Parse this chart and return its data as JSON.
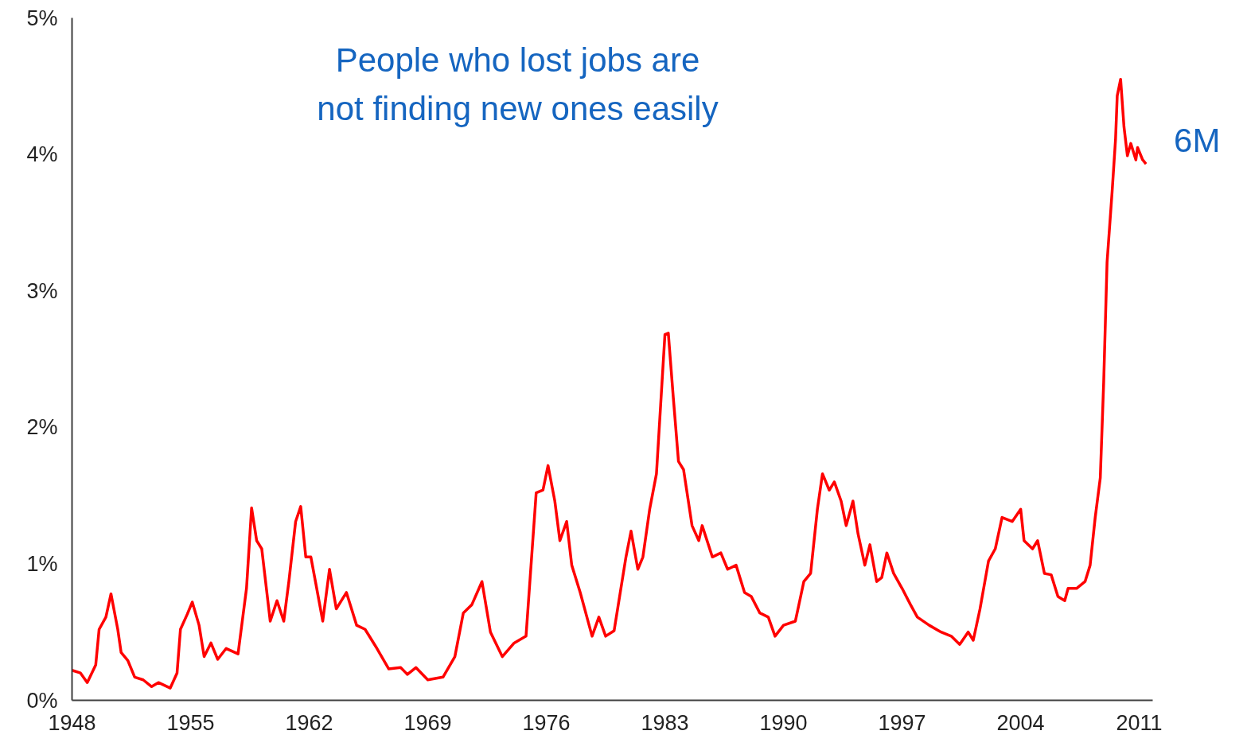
{
  "chart_data": {
    "type": "line",
    "xlim": [
      1948,
      2011.8
    ],
    "ylim": [
      0,
      5
    ],
    "xticks": [
      1948,
      1955,
      1962,
      1969,
      1976,
      1983,
      1990,
      1997,
      2004,
      2011
    ],
    "yticks": [
      {
        "value": 0,
        "label": "0%"
      },
      {
        "value": 1,
        "label": "1%"
      },
      {
        "value": 2,
        "label": "2%"
      },
      {
        "value": 3,
        "label": "3%"
      },
      {
        "value": 4,
        "label": "4%"
      },
      {
        "value": 5,
        "label": "5%"
      }
    ],
    "grid": false,
    "marker": "none",
    "line_style": "solid",
    "annotations": [
      "People who lost jobs are\nnot finding new ones easily",
      {
        "text": "6M",
        "x": 2011.4,
        "y": 3.93
      }
    ],
    "x": [
      1948.0,
      1948.5,
      1948.9,
      1949.4,
      1949.6,
      1950.0,
      1950.3,
      1950.7,
      1950.9,
      1951.3,
      1951.7,
      1952.2,
      1952.7,
      1953.1,
      1953.8,
      1954.2,
      1954.4,
      1954.8,
      1955.1,
      1955.5,
      1955.8,
      1956.2,
      1956.6,
      1957.1,
      1957.8,
      1958.3,
      1958.6,
      1958.9,
      1959.2,
      1959.7,
      1960.1,
      1960.5,
      1960.8,
      1961.2,
      1961.5,
      1961.8,
      1962.1,
      1962.4,
      1962.8,
      1963.2,
      1963.6,
      1964.2,
      1964.8,
      1965.3,
      1966.0,
      1966.7,
      1967.4,
      1967.8,
      1968.3,
      1969.0,
      1969.9,
      1970.6,
      1971.1,
      1971.6,
      1972.2,
      1972.7,
      1973.4,
      1974.1,
      1974.8,
      1975.4,
      1975.8,
      1976.1,
      1976.5,
      1976.8,
      1977.2,
      1977.5,
      1978.0,
      1978.7,
      1979.1,
      1979.5,
      1980.0,
      1980.7,
      1981.0,
      1981.4,
      1981.7,
      1982.1,
      1982.5,
      1983.0,
      1983.2,
      1983.5,
      1983.8,
      1984.1,
      1984.6,
      1985.0,
      1985.2,
      1985.8,
      1986.3,
      1986.7,
      1987.2,
      1987.7,
      1988.1,
      1988.6,
      1989.1,
      1989.5,
      1990.0,
      1990.7,
      1991.2,
      1991.6,
      1992.0,
      1992.3,
      1992.7,
      1993.0,
      1993.4,
      1993.7,
      1994.1,
      1994.4,
      1994.8,
      1995.1,
      1995.5,
      1995.8,
      1996.1,
      1996.5,
      1997.0,
      1997.5,
      1997.9,
      1998.6,
      1999.3,
      1999.9,
      2000.4,
      2000.9,
      2001.2,
      2001.6,
      2002.1,
      2002.5,
      2002.9,
      2003.5,
      2004.0,
      2004.2,
      2004.7,
      2005.0,
      2005.4,
      2005.8,
      2006.2,
      2006.6,
      2006.8,
      2007.3,
      2007.8,
      2008.1,
      2008.4,
      2008.7,
      2008.9,
      2009.1,
      2009.4,
      2009.6,
      2009.7,
      2009.9,
      2010.1,
      2010.3,
      2010.5,
      2010.8,
      2010.9,
      2011.2,
      2011.4
    ],
    "series": [
      {
        "color": "#ff0000",
        "values": [
          0.22,
          0.2,
          0.13,
          0.26,
          0.52,
          0.61,
          0.78,
          0.52,
          0.35,
          0.29,
          0.17,
          0.15,
          0.1,
          0.13,
          0.09,
          0.2,
          0.52,
          0.63,
          0.72,
          0.55,
          0.32,
          0.42,
          0.3,
          0.38,
          0.34,
          0.82,
          1.41,
          1.17,
          1.11,
          0.58,
          0.73,
          0.58,
          0.87,
          1.31,
          1.42,
          1.05,
          1.05,
          0.85,
          0.58,
          0.96,
          0.67,
          0.79,
          0.55,
          0.52,
          0.38,
          0.23,
          0.24,
          0.19,
          0.24,
          0.15,
          0.17,
          0.32,
          0.64,
          0.7,
          0.87,
          0.5,
          0.32,
          0.42,
          0.47,
          1.52,
          1.54,
          1.72,
          1.46,
          1.17,
          1.31,
          0.99,
          0.79,
          0.47,
          0.61,
          0.47,
          0.51,
          1.05,
          1.24,
          0.96,
          1.05,
          1.4,
          1.66,
          2.68,
          2.69,
          2.21,
          1.75,
          1.69,
          1.28,
          1.17,
          1.28,
          1.05,
          1.08,
          0.96,
          0.99,
          0.79,
          0.76,
          0.64,
          0.61,
          0.47,
          0.55,
          0.58,
          0.87,
          0.93,
          1.4,
          1.66,
          1.54,
          1.6,
          1.46,
          1.28,
          1.46,
          1.22,
          0.99,
          1.14,
          0.87,
          0.9,
          1.08,
          0.93,
          0.82,
          0.7,
          0.61,
          0.55,
          0.5,
          0.47,
          0.41,
          0.5,
          0.44,
          0.67,
          1.02,
          1.11,
          1.34,
          1.31,
          1.4,
          1.17,
          1.11,
          1.17,
          0.93,
          0.92,
          0.76,
          0.73,
          0.82,
          0.82,
          0.87,
          0.99,
          1.34,
          1.63,
          2.33,
          3.21,
          3.73,
          4.11,
          4.43,
          4.55,
          4.2,
          3.99,
          4.08,
          3.96,
          4.05,
          3.96,
          3.93
        ]
      }
    ]
  }
}
